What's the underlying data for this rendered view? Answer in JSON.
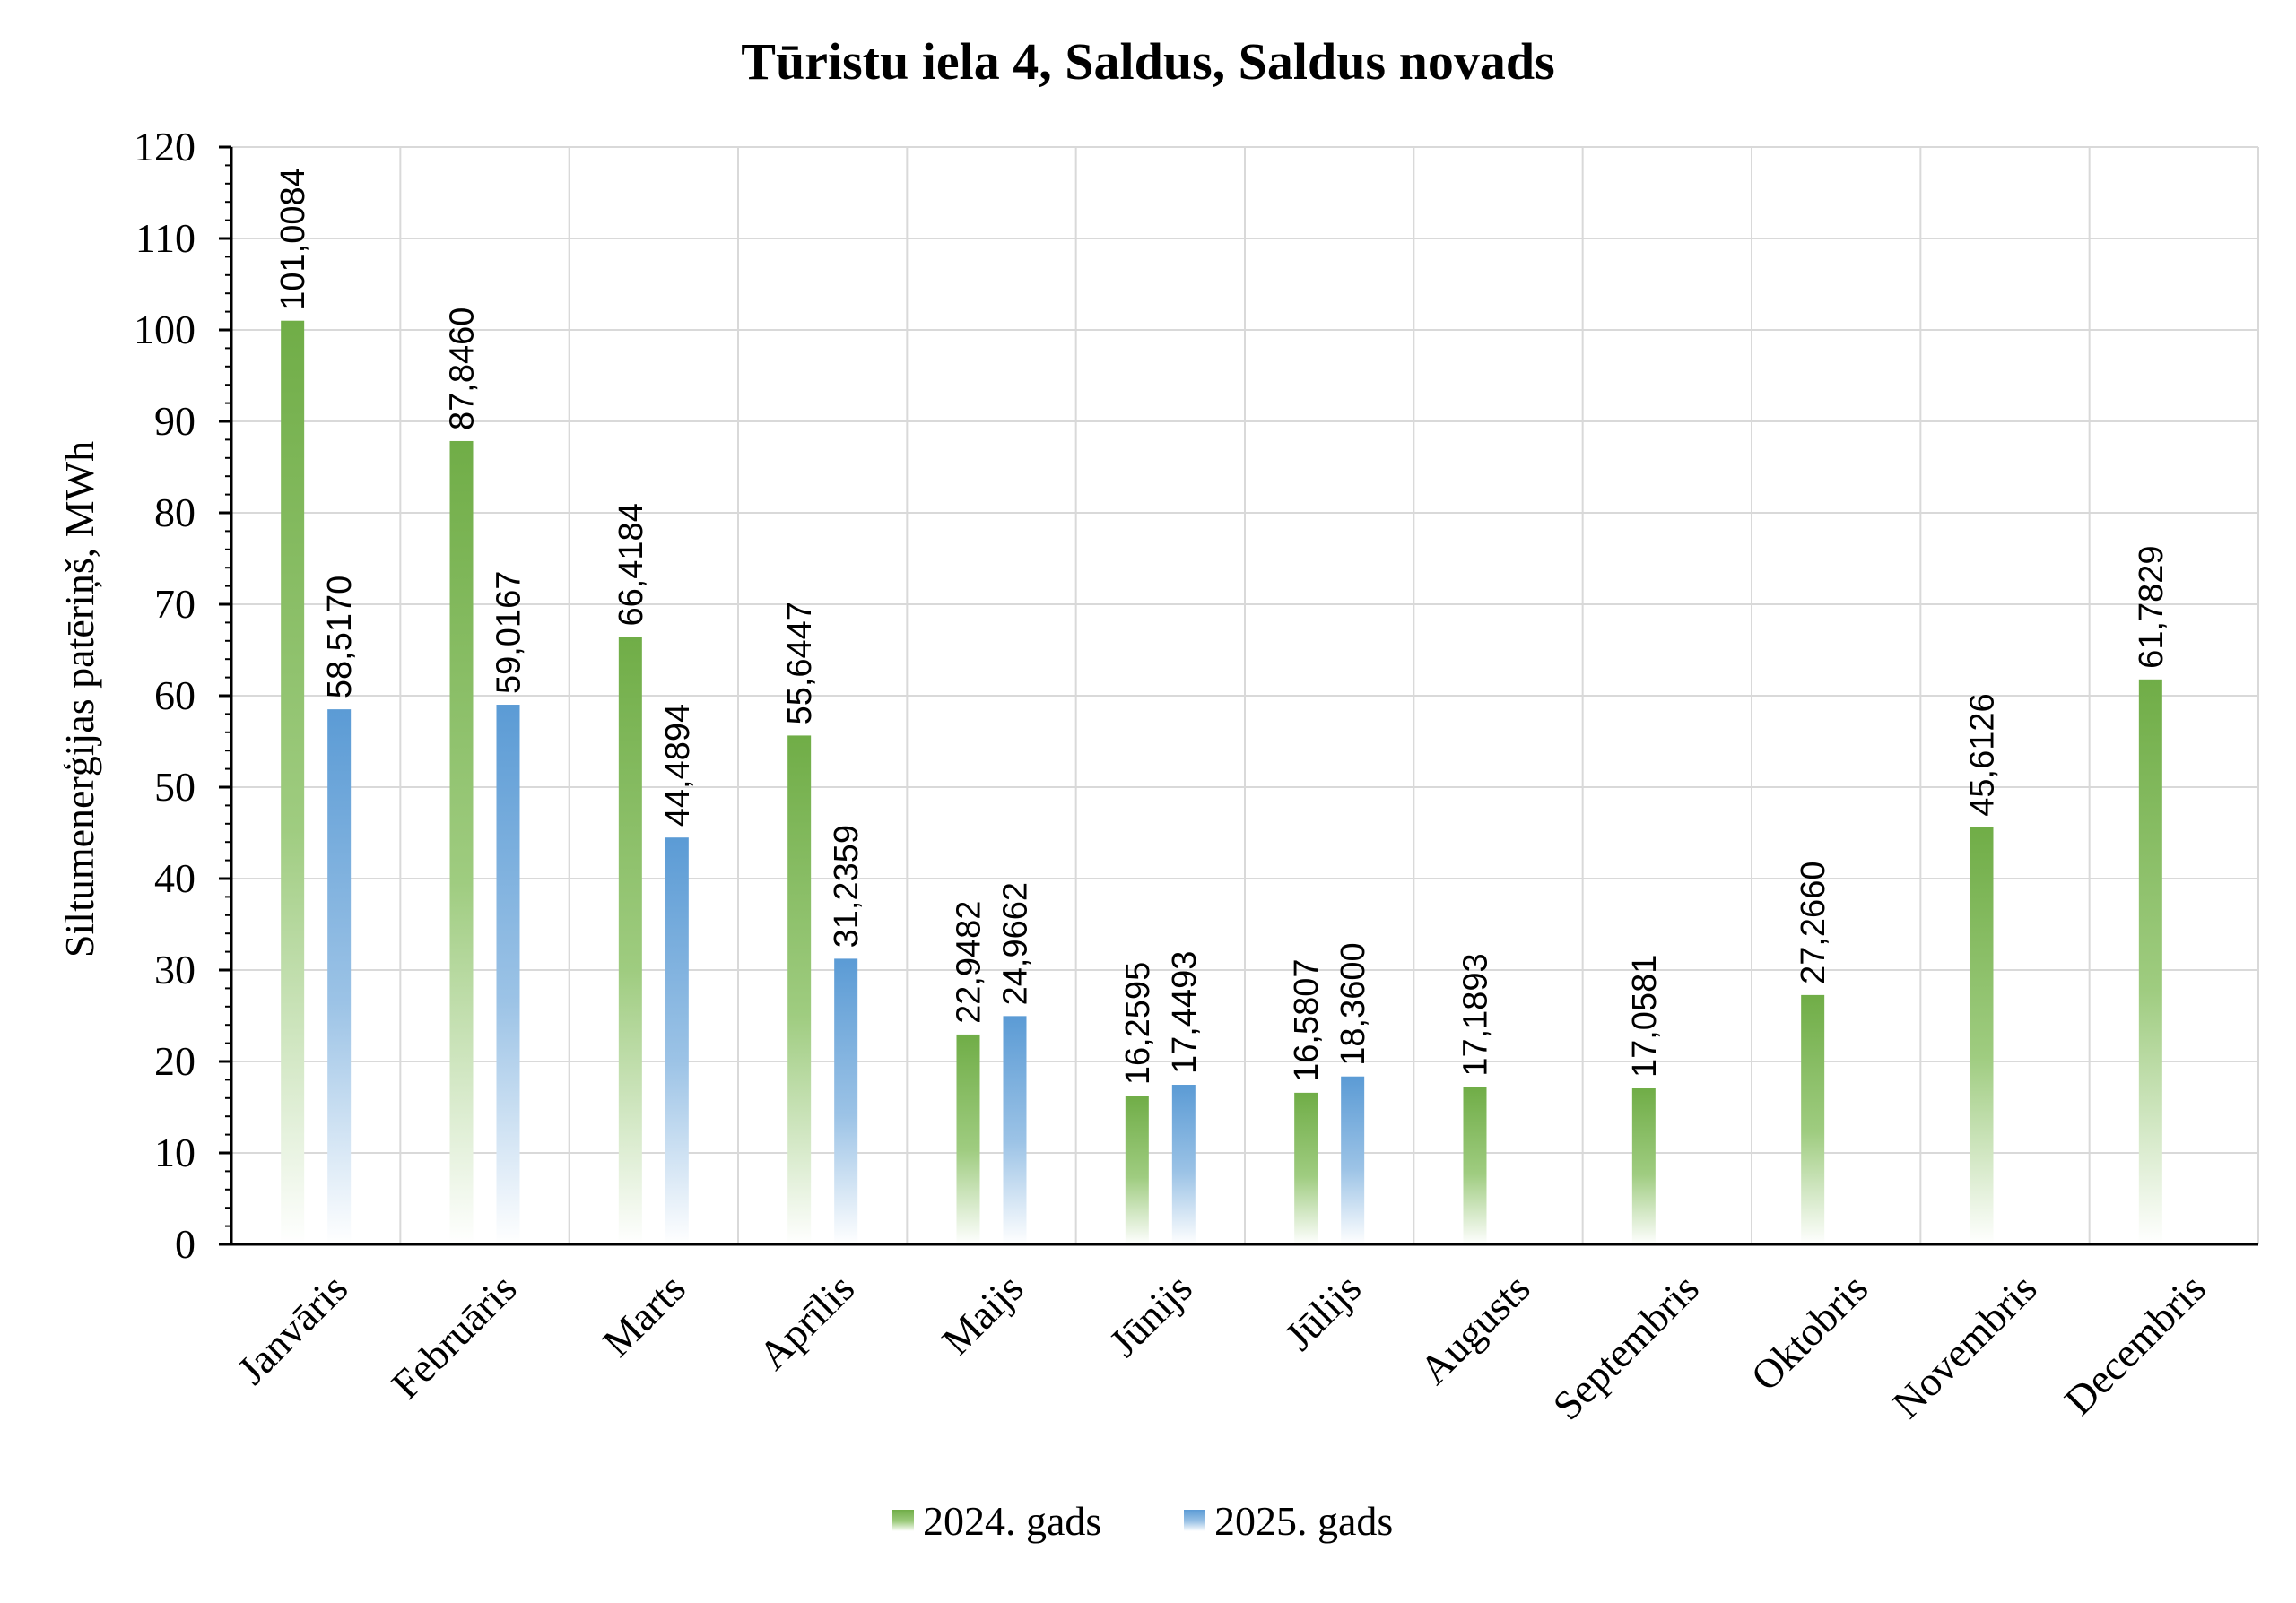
{
  "colors": {
    "series_2024": "#70ad47",
    "series_2025": "#5b9bd5"
  },
  "chart_data": {
    "type": "bar",
    "title": "Tūristu iela 4, Saldus, Saldus novads",
    "ylabel": "Siltumenerģijas patēriņš, MWh",
    "xlabel": "",
    "ylim": [
      0,
      120
    ],
    "yticks": [
      "0",
      "10",
      "20",
      "30",
      "40",
      "50",
      "60",
      "70",
      "80",
      "90",
      "100",
      "110",
      "120"
    ],
    "grid": true,
    "legend_position": "bottom",
    "categories": [
      "Janvāris",
      "Februāris",
      "Marts",
      "Aprīlis",
      "Maijs",
      "Jūnijs",
      "Jūlijs",
      "Augusts",
      "Septembris",
      "Oktobris",
      "Novembris",
      "Decembris"
    ],
    "series": [
      {
        "name": "2024. gads",
        "color": "#70ad47",
        "values": [
          101.0084,
          87.846,
          66.4184,
          55.6447,
          22.9482,
          16.2595,
          16.5807,
          17.1893,
          17.0581,
          27.266,
          45.6126,
          61.7829
        ],
        "labels": [
          "101,0084",
          "87,8460",
          "66,4184",
          "55,6447",
          "22,9482",
          "16,2595",
          "16,5807",
          "17,1893",
          "17,0581",
          "27,2660",
          "45,6126",
          "61,7829"
        ]
      },
      {
        "name": "2025. gads",
        "color": "#5b9bd5",
        "values": [
          58.517,
          59.0167,
          44.4894,
          31.2359,
          24.9662,
          17.4493,
          18.36,
          null,
          null,
          null,
          null,
          null
        ],
        "labels": [
          "58,5170",
          "59,0167",
          "44,4894",
          "31,2359",
          "24,9662",
          "17,4493",
          "18,3600",
          "",
          "",
          "",
          "",
          ""
        ]
      }
    ]
  }
}
